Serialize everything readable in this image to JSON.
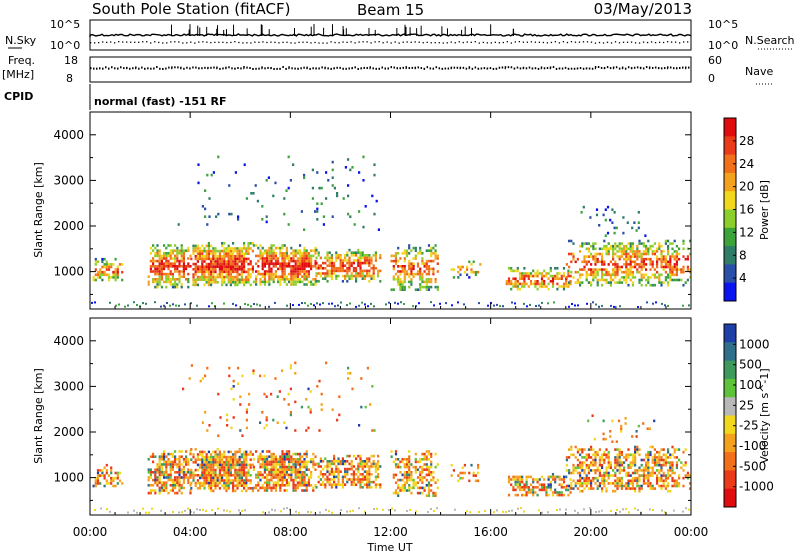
{
  "header": {
    "station": "South Pole Station (fitACF)",
    "beam": "Beam 15",
    "date": "03/May/2013"
  },
  "sky_panel": {
    "left_label": "N.Sky",
    "right_label": "N.Search",
    "left_ticks": [
      "10^5",
      "10^0"
    ],
    "right_ticks": [
      "10^5",
      "10^0"
    ]
  },
  "freq_panel": {
    "left_label": "Freq.",
    "left_unit": "[MHz]",
    "right_label": "Nave",
    "left_ticks": [
      "18",
      "8"
    ],
    "right_ticks": [
      "60",
      "0"
    ]
  },
  "cpid": {
    "label": "CPID",
    "value": "normal (fast) -151 RF"
  },
  "chart_data": [
    {
      "type": "heatmap",
      "name": "power",
      "ylabel": "Slant Range [km]",
      "ylim": [
        180,
        4500
      ],
      "yticks": [
        "1000",
        "2000",
        "3000",
        "4000"
      ],
      "colorbar_label": "Power [dB]",
      "colorbar_ticks": [
        "4",
        "8",
        "12",
        "16",
        "20",
        "24",
        "28"
      ],
      "colors": [
        "#0a14f0",
        "#2a4fa8",
        "#2f7c68",
        "#3ea23a",
        "#8ccf2c",
        "#f1d81c",
        "#f4a21e",
        "#f2701a",
        "#ea3a18",
        "#e00c10"
      ]
    },
    {
      "type": "heatmap",
      "name": "velocity",
      "ylabel": "Slant Range [km]",
      "ylim": [
        180,
        4500
      ],
      "yticks": [
        "1000",
        "2000",
        "3000",
        "4000"
      ],
      "colorbar_label": "Velocity [m s^-1]",
      "colorbar_ticks": [
        "1000",
        "500",
        "100",
        "25",
        "-25",
        "-100",
        "-500",
        "-1000"
      ],
      "colors": [
        "#1f3fa8",
        "#2f6f8a",
        "#3d9a5c",
        "#5ec23a",
        "#b8b8b8",
        "#f1d81c",
        "#f4a21e",
        "#f2701a",
        "#ea3a18",
        "#e00c10"
      ]
    }
  ],
  "time_axis": {
    "xlabel": "Time UT",
    "ticks": [
      "00:00",
      "04:00",
      "08:00",
      "12:00",
      "16:00",
      "20:00",
      "00:00"
    ]
  }
}
